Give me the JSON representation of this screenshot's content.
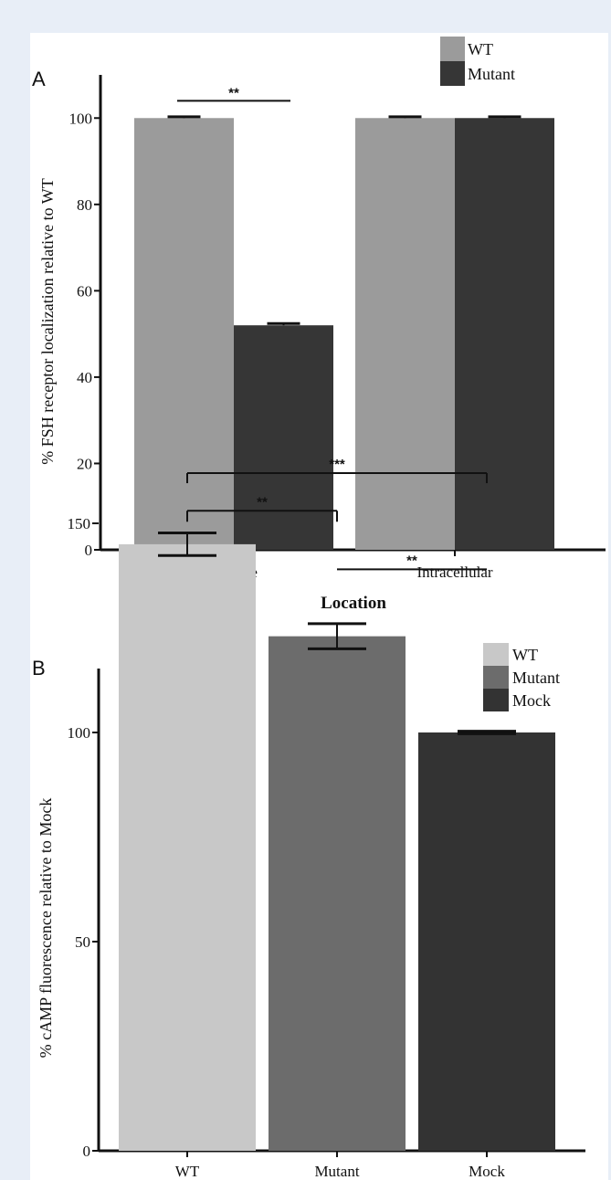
{
  "colors": {
    "page_background": "#e8eef7",
    "figure_background": "#ffffff",
    "axis": "#111111"
  },
  "chart_data": [
    {
      "panel": "A",
      "type": "bar",
      "xlabel": "Location",
      "ylabel": "% FSH receptor localization relative to WT",
      "ylim": [
        0,
        110
      ],
      "yticks": [
        0,
        20,
        40,
        60,
        80,
        100
      ],
      "categories": [
        "Surface",
        "Intracellular"
      ],
      "series": [
        {
          "name": "WT",
          "color": "#9b9b9b",
          "values": [
            100,
            100
          ],
          "errors": [
            0.3,
            0.3
          ]
        },
        {
          "name": "Mutant",
          "color": "#363636",
          "values": [
            52,
            100
          ],
          "errors": [
            0.4,
            0.3
          ]
        }
      ],
      "legend_position": "top-right",
      "grid": false,
      "annotations": [
        {
          "text": "**",
          "category": "Surface",
          "from_series": "WT",
          "to_series": "Mutant",
          "y": 104
        }
      ]
    },
    {
      "panel": "B",
      "type": "bar",
      "xlabel": "",
      "ylabel": "% cAMP fluorescence relative to Mock",
      "ylim": [
        0,
        180
      ],
      "yticks": [
        0,
        50,
        100,
        150
      ],
      "categories": [
        "WT",
        "Mutant",
        "Mock"
      ],
      "values": [
        145,
        123,
        100
      ],
      "errors": [
        2.7,
        3.0,
        0.3
      ],
      "colors": [
        "#c8c8c8",
        "#6c6c6c",
        "#333333"
      ],
      "legend": [
        "WT",
        "Mutant",
        "Mock"
      ],
      "legend_position": "top-right",
      "grid": false,
      "annotations": [
        {
          "text": "***",
          "from": "WT",
          "to": "Mock",
          "y": 162
        },
        {
          "text": "**",
          "from": "WT",
          "to": "Mutant",
          "y": 153
        },
        {
          "text": "**",
          "from": "Mutant",
          "to": "Mock",
          "y": 139
        }
      ]
    }
  ]
}
